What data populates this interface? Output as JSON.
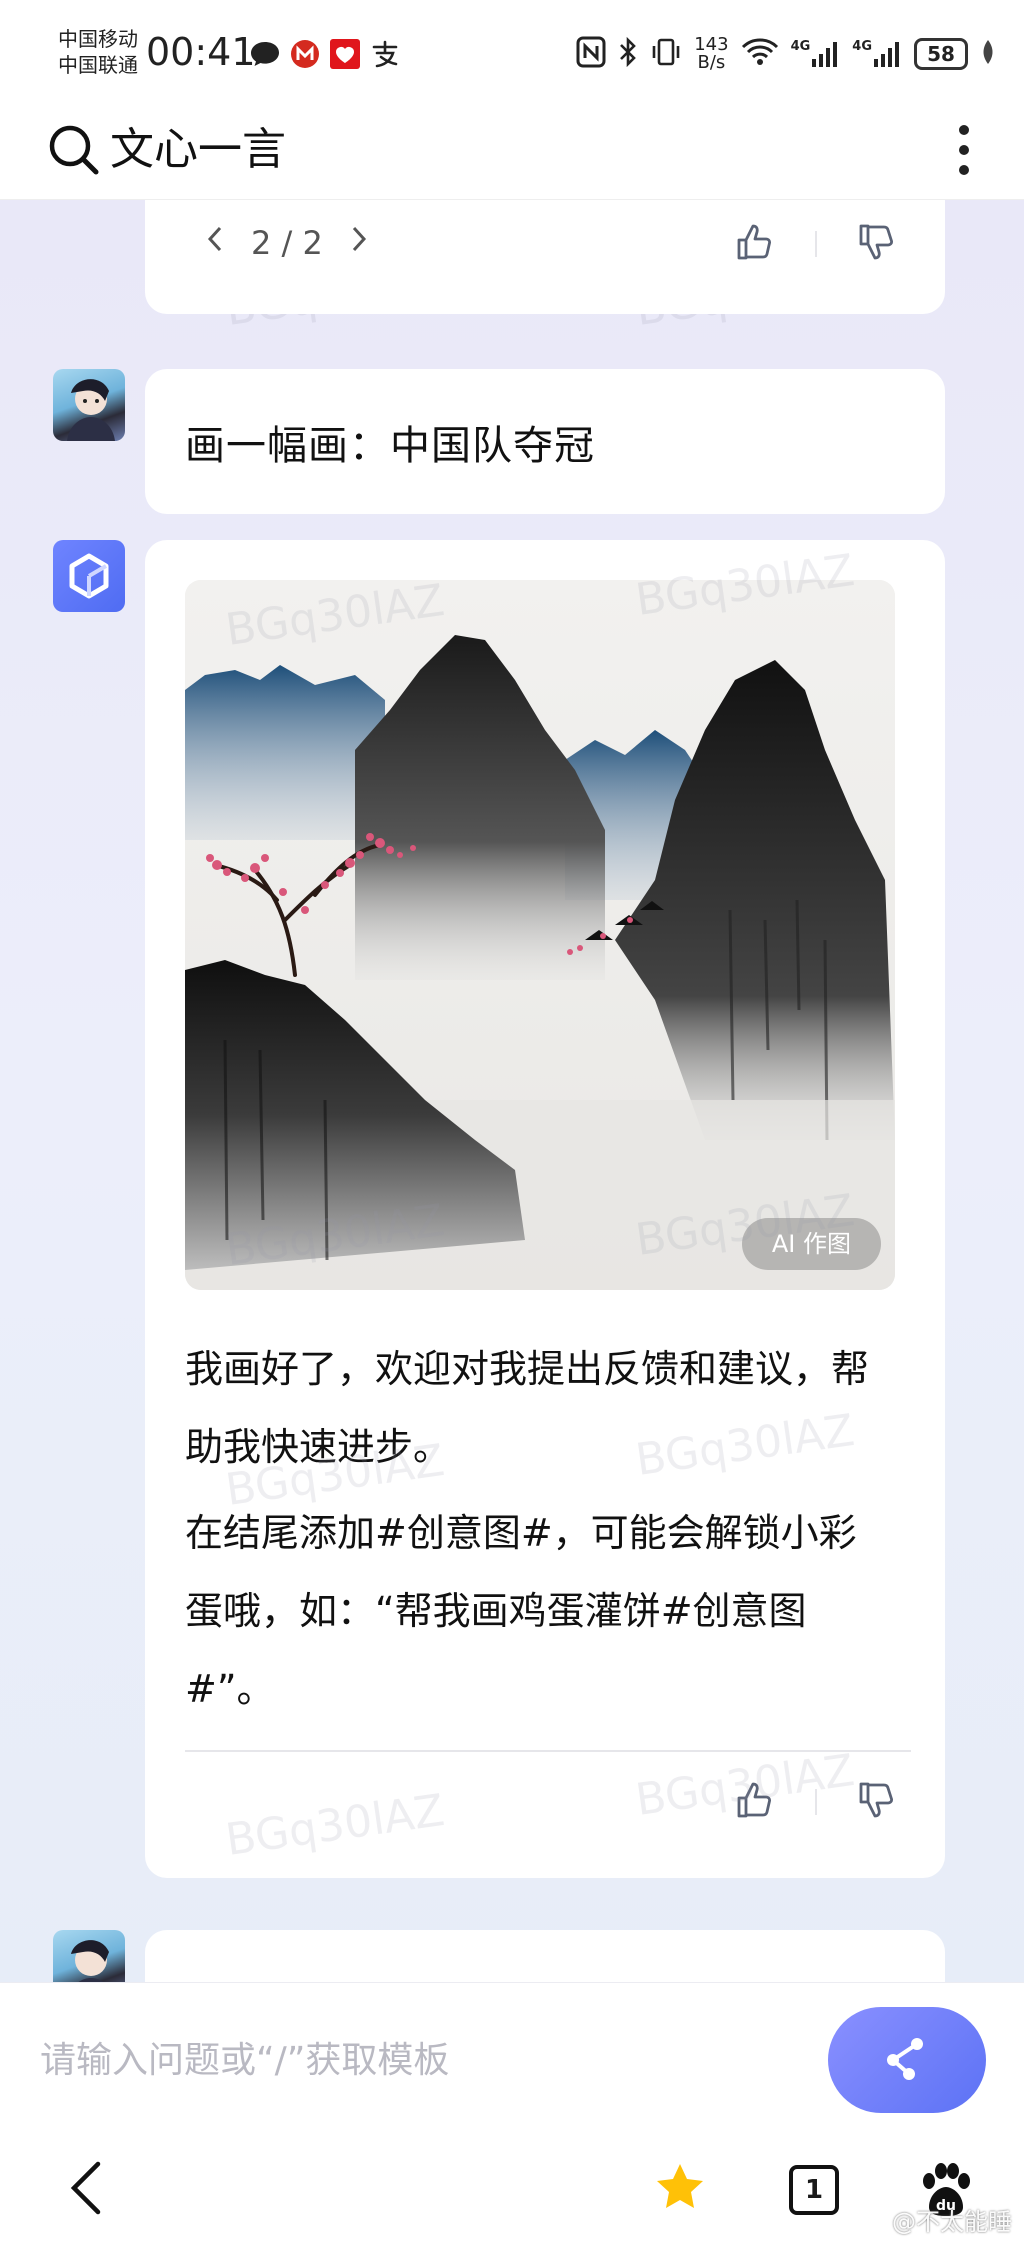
{
  "status_bar": {
    "carrier_1": "中国移动",
    "carrier_2": "中国联通",
    "time": "00:41",
    "net_speed_value": "143",
    "net_speed_unit": "B/s",
    "signal_1": "4G",
    "signal_2": "4G",
    "battery": "58"
  },
  "header": {
    "title": "文心一言",
    "icons": [
      "search-icon",
      "more-vertical-icon"
    ]
  },
  "chat": {
    "prev_card": {
      "pager": "2 / 2"
    },
    "user_message": {
      "text": "画一幅画：中国队夺冠"
    },
    "bot_reply": {
      "image_badge": "AI 作图",
      "paragraph_1": "我画好了，欢迎对我提出反馈和建议，帮助我快速进步。",
      "paragraph_2": "在结尾添加#创意图#，可能会解锁小彩蛋哦，如：“帮我画鸡蛋灌饼#创意图#”。"
    },
    "watermark": "BGq30lAZ"
  },
  "input": {
    "placeholder": "请输入问题或“/”获取模板"
  },
  "bottom_nav": {
    "tab_count": "1",
    "credit": "@不太能睡"
  },
  "colors": {
    "accent": "#5c72f5",
    "chat_background": "#e9e8f8",
    "star": "#ffc107"
  }
}
